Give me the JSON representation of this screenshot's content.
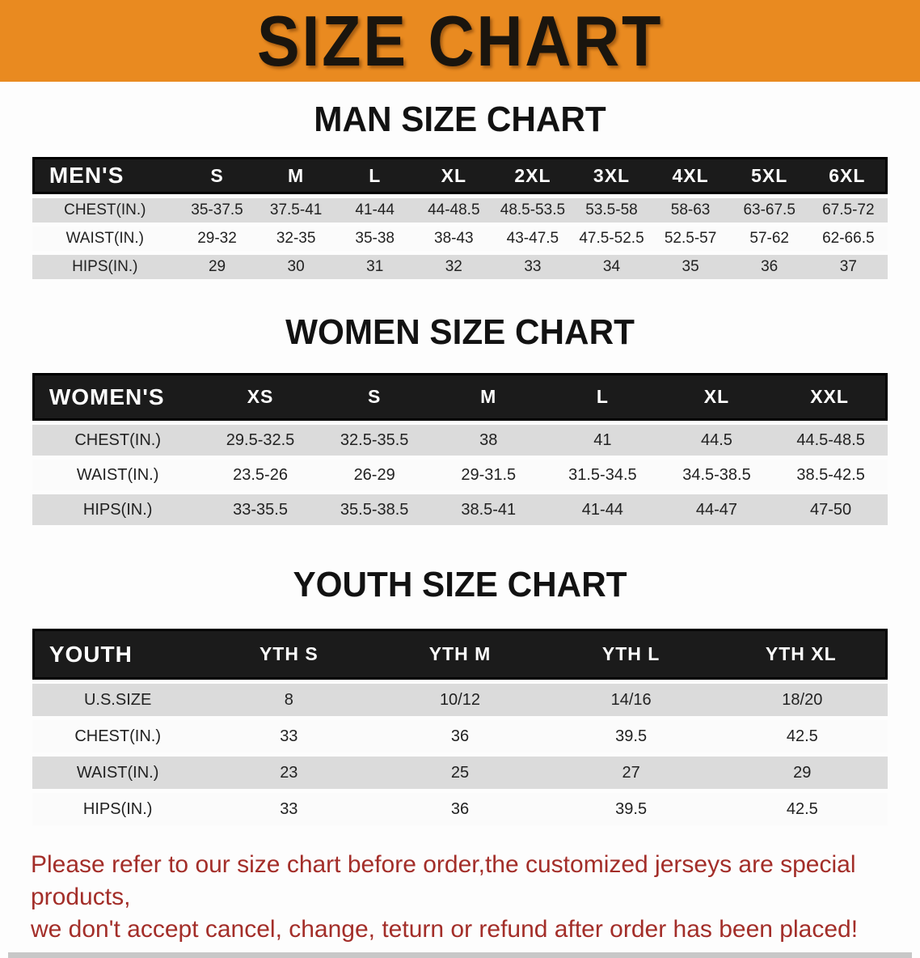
{
  "banner": {
    "title": "SIZE CHART",
    "bg_color": "#E98A20",
    "text_color": "#1A150E"
  },
  "sections": [
    {
      "title": "MAN SIZE CHART",
      "table": {
        "header_label": "MEN'S",
        "sizes": [
          "S",
          "M",
          "L",
          "XL",
          "2XL",
          "3XL",
          "4XL",
          "5XL",
          "6XL"
        ],
        "rows": [
          {
            "label": "CHEST(IN.)",
            "values": [
              "35-37.5",
              "37.5-41",
              "41-44",
              "44-48.5",
              "48.5-53.5",
              "53.5-58",
              "58-63",
              "63-67.5",
              "67.5-72"
            ]
          },
          {
            "label": "WAIST(IN.)",
            "values": [
              "29-32",
              "32-35",
              "35-38",
              "38-43",
              "43-47.5",
              "47.5-52.5",
              "52.5-57",
              "57-62",
              "62-66.5"
            ]
          },
          {
            "label": "HIPS(IN.)",
            "values": [
              "29",
              "30",
              "31",
              "32",
              "33",
              "34",
              "35",
              "36",
              "37"
            ]
          }
        ]
      }
    },
    {
      "title": "WOMEN SIZE CHART",
      "table": {
        "header_label": "WOMEN'S",
        "sizes": [
          "XS",
          "S",
          "M",
          "L",
          "XL",
          "XXL"
        ],
        "rows": [
          {
            "label": "CHEST(IN.)",
            "values": [
              "29.5-32.5",
              "32.5-35.5",
              "38",
              "41",
              "44.5",
              "44.5-48.5"
            ]
          },
          {
            "label": "WAIST(IN.)",
            "values": [
              "23.5-26",
              "26-29",
              "29-31.5",
              "31.5-34.5",
              "34.5-38.5",
              "38.5-42.5"
            ]
          },
          {
            "label": "HIPS(IN.)",
            "values": [
              "33-35.5",
              "35.5-38.5",
              "38.5-41",
              "41-44",
              "44-47",
              "47-50"
            ]
          }
        ]
      }
    },
    {
      "title": "YOUTH SIZE CHART",
      "table": {
        "header_label": "YOUTH",
        "sizes": [
          "YTH S",
          "YTH M",
          "YTH L",
          "YTH XL"
        ],
        "rows": [
          {
            "label": "U.S.SIZE",
            "values": [
              "8",
              "10/12",
              "14/16",
              "18/20"
            ]
          },
          {
            "label": "CHEST(IN.)",
            "values": [
              "33",
              "36",
              "39.5",
              "42.5"
            ]
          },
          {
            "label": "WAIST(IN.)",
            "values": [
              "23",
              "25",
              "27",
              "29"
            ]
          },
          {
            "label": "HIPS(IN.)",
            "values": [
              "33",
              "36",
              "39.5",
              "42.5"
            ]
          }
        ]
      }
    }
  ],
  "disclaimer": {
    "line1": "Please refer to our size chart before order,the customized jerseys are special products,",
    "line2": "we don't accept cancel, change, teturn or refund after order has been placed!",
    "color": "#A32E29"
  },
  "colors": {
    "table_header_bg": "#1B1B1B",
    "table_header_text": "#FFFFFF",
    "row_stripe": "#DBDBDB",
    "bottom_bar": "#C7C7C7"
  }
}
